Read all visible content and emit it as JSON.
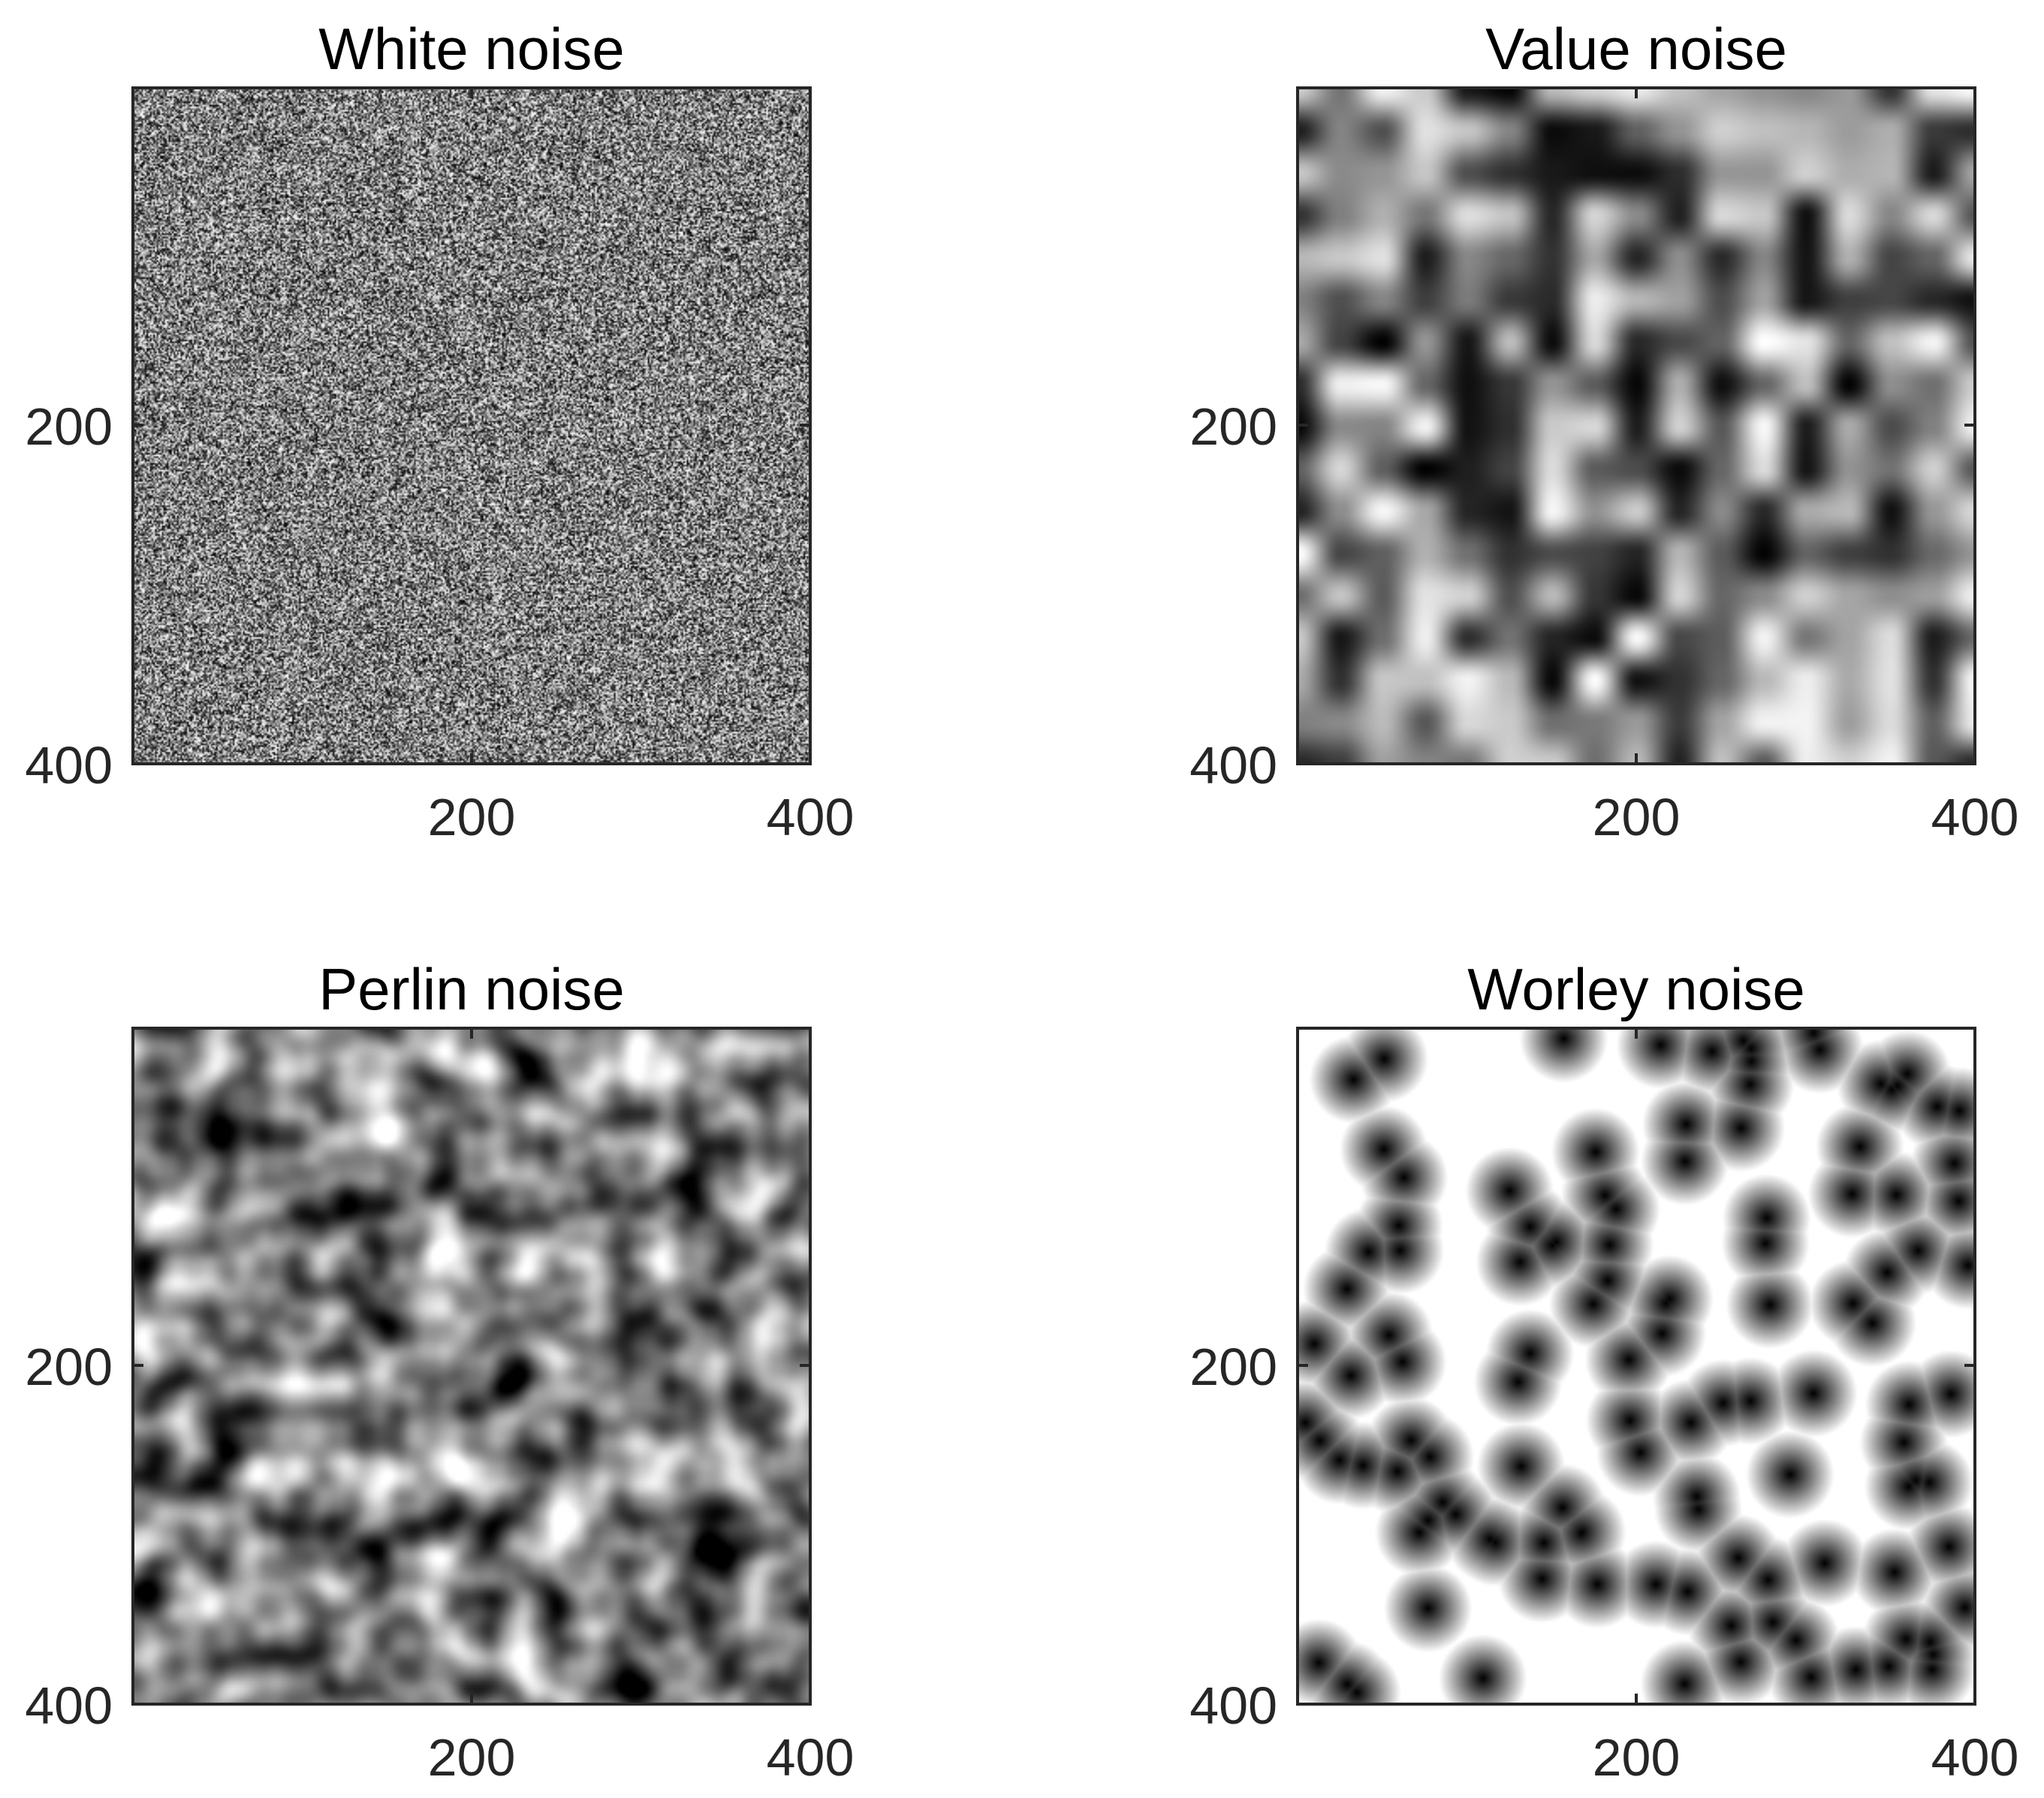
{
  "chart_data": [
    {
      "type": "heatmap",
      "title": "White noise",
      "colormap": "gray",
      "xlim": [
        1,
        400
      ],
      "ylim": [
        1,
        400
      ],
      "y_direction": "reversed",
      "x_ticks": [
        200,
        400
      ],
      "y_ticks": [
        200,
        400
      ],
      "grid": false,
      "pattern": "white"
    },
    {
      "type": "heatmap",
      "title": "Value noise",
      "colormap": "gray",
      "xlim": [
        1,
        400
      ],
      "ylim": [
        1,
        400
      ],
      "y_direction": "reversed",
      "x_ticks": [
        200,
        400
      ],
      "y_ticks": [
        200,
        400
      ],
      "grid": false,
      "pattern": "value"
    },
    {
      "type": "heatmap",
      "title": "Perlin noise",
      "colormap": "gray",
      "xlim": [
        1,
        400
      ],
      "ylim": [
        1,
        400
      ],
      "y_direction": "reversed",
      "x_ticks": [
        200,
        400
      ],
      "y_ticks": [
        200,
        400
      ],
      "grid": false,
      "pattern": "perlin"
    },
    {
      "type": "heatmap",
      "title": "Worley noise",
      "colormap": "gray",
      "xlim": [
        1,
        400
      ],
      "ylim": [
        1,
        400
      ],
      "y_direction": "reversed",
      "x_ticks": [
        200,
        400
      ],
      "y_ticks": [
        200,
        400
      ],
      "grid": false,
      "pattern": "worley"
    }
  ]
}
